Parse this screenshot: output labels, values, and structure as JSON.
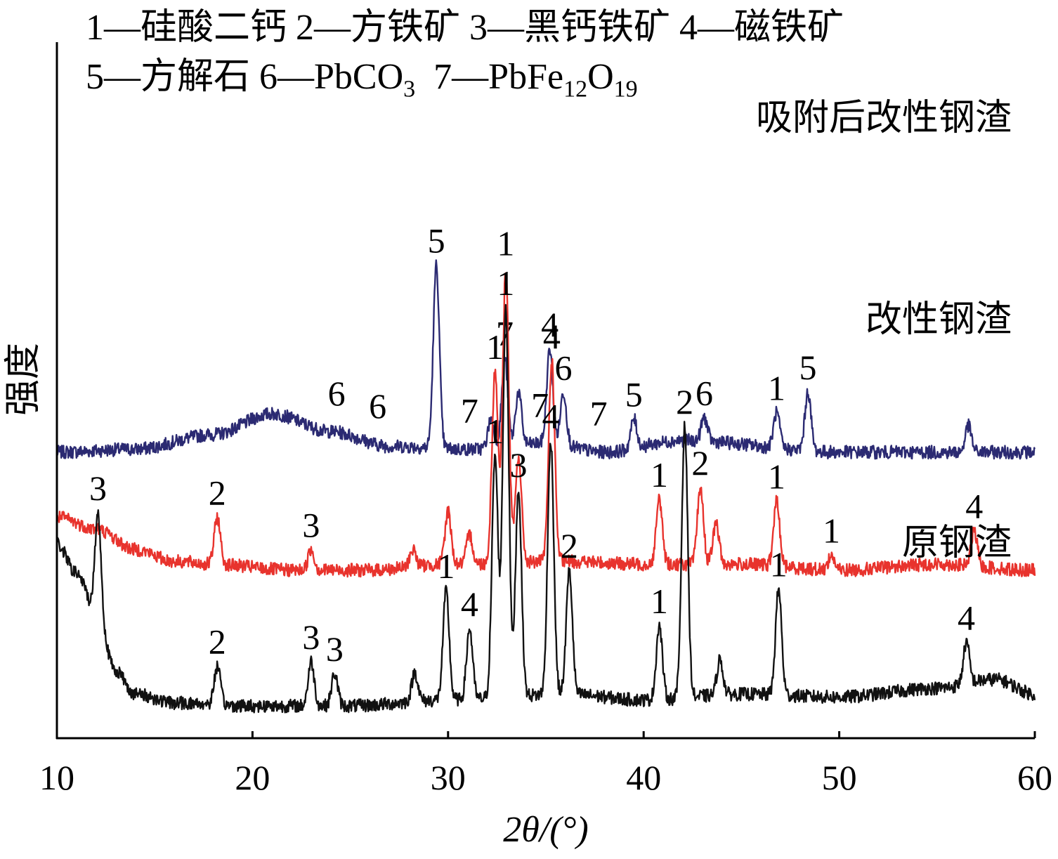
{
  "legend": {
    "line1": "1—硅酸二钙 2—方铁矿 3—黑钙铁矿 4—磁铁矿",
    "line2_prefix": "5—方解石 6—PbCO",
    "line2_sub1": "3",
    "line2_mid": "  7—PbFe",
    "line2_sub2": "12",
    "line2_o": "O",
    "line2_sub3": "19"
  },
  "chart_data": {
    "type": "line",
    "xlabel": "2θ/(°)",
    "ylabel": "强度",
    "xlim": [
      10,
      60
    ],
    "xticks": [
      10,
      20,
      30,
      40,
      50,
      60
    ],
    "yticks": [],
    "grid": false,
    "legend_placement": "top-left",
    "series": [
      {
        "name": "吸附后改性钢渣",
        "color": "#2b2a72",
        "baseline": 0.86,
        "background": [
          [
            10,
            0
          ],
          [
            14,
            0.01
          ],
          [
            18,
            0.06
          ],
          [
            21,
            0.13
          ],
          [
            24,
            0.07
          ],
          [
            27,
            0.02
          ],
          [
            31,
            0.01
          ],
          [
            35,
            0.03
          ],
          [
            38,
            0.0
          ],
          [
            42,
            0.04
          ],
          [
            50,
            0.0
          ],
          [
            55,
            0.0
          ],
          [
            60,
            0.0
          ]
        ],
        "peaks": [
          {
            "x": 29.4,
            "h": 0.62,
            "label": "5"
          },
          {
            "x": 32.2,
            "h": 0.1
          },
          {
            "x": 32.9,
            "h": 0.3,
            "label": "7"
          },
          {
            "x": 33.6,
            "h": 0.18
          },
          {
            "x": 35.2,
            "h": 0.32,
            "label": "4"
          },
          {
            "x": 35.9,
            "h": 0.18,
            "label": "6"
          },
          {
            "x": 39.5,
            "h": 0.1,
            "label": "5"
          },
          {
            "x": 43.1,
            "h": 0.08,
            "label": "6"
          },
          {
            "x": 46.8,
            "h": 0.12,
            "label": "1"
          },
          {
            "x": 48.4,
            "h": 0.2,
            "label": "5"
          },
          {
            "x": 56.6,
            "h": 0.09
          }
        ],
        "annotations": [
          {
            "x": 24.3,
            "text": "6"
          },
          {
            "x": 26.4,
            "text": "6"
          },
          {
            "x": 31.1,
            "text": "7"
          },
          {
            "x": 34.7,
            "text": "7"
          },
          {
            "x": 37.7,
            "text": "7"
          }
        ],
        "title_label": "吸附后改性钢渣"
      },
      {
        "name": "改性钢渣",
        "color": "#e8332d",
        "baseline": 0.46,
        "background": [
          [
            10,
            0.18
          ],
          [
            12,
            0.14
          ],
          [
            14,
            0.07
          ],
          [
            16,
            0.03
          ],
          [
            18,
            0.02
          ],
          [
            22,
            0.0
          ],
          [
            26,
            0.0
          ],
          [
            30,
            0.02
          ],
          [
            36,
            0.03
          ],
          [
            40,
            0.02
          ],
          [
            45,
            0.02
          ],
          [
            50,
            0.0
          ],
          [
            55,
            0.02
          ],
          [
            60,
            0.0
          ]
        ],
        "peaks": [
          {
            "x": 18.2,
            "h": 0.16,
            "label": "2"
          },
          {
            "x": 23.0,
            "h": 0.07,
            "label": "3"
          },
          {
            "x": 28.2,
            "h": 0.06
          },
          {
            "x": 30.0,
            "h": 0.18
          },
          {
            "x": 31.1,
            "h": 0.1
          },
          {
            "x": 32.4,
            "h": 0.65,
            "label": "1"
          },
          {
            "x": 32.95,
            "h": 1.0,
            "label": "1"
          },
          {
            "x": 33.6,
            "h": 0.36
          },
          {
            "x": 35.3,
            "h": 0.68,
            "label": "4"
          },
          {
            "x": 40.8,
            "h": 0.22,
            "label": "1"
          },
          {
            "x": 42.9,
            "h": 0.26,
            "label": "2"
          },
          {
            "x": 43.7,
            "h": 0.14
          },
          {
            "x": 46.8,
            "h": 0.22,
            "label": "1"
          },
          {
            "x": 49.6,
            "h": 0.05,
            "label": "1"
          },
          {
            "x": 56.9,
            "h": 0.12,
            "label": "4"
          }
        ],
        "title_label": "改性钢渣"
      },
      {
        "name": "原钢渣",
        "color": "#111111",
        "baseline": 0.0,
        "background": [
          [
            10,
            0.55
          ],
          [
            11,
            0.45
          ],
          [
            12,
            0.32
          ],
          [
            13,
            0.12
          ],
          [
            14,
            0.04
          ],
          [
            16,
            0.01
          ],
          [
            20,
            0.0
          ],
          [
            25,
            0.0
          ],
          [
            30,
            0.02
          ],
          [
            36,
            0.04
          ],
          [
            40,
            0.02
          ],
          [
            45,
            0.04
          ],
          [
            50,
            0.03
          ],
          [
            55,
            0.06
          ],
          [
            58,
            0.09
          ],
          [
            60,
            0.04
          ]
        ],
        "peaks": [
          {
            "x": 12.1,
            "h": 0.34,
            "label": "3"
          },
          {
            "x": 18.2,
            "h": 0.13,
            "label": "2"
          },
          {
            "x": 23.0,
            "h": 0.15,
            "label": "3"
          },
          {
            "x": 24.2,
            "h": 0.11,
            "label": "3"
          },
          {
            "x": 28.3,
            "h": 0.1
          },
          {
            "x": 29.9,
            "h": 0.37,
            "label": "1"
          },
          {
            "x": 31.1,
            "h": 0.24,
            "label": "4"
          },
          {
            "x": 32.4,
            "h": 0.82,
            "label": "1"
          },
          {
            "x": 32.95,
            "h": 1.32,
            "label": "1"
          },
          {
            "x": 33.6,
            "h": 0.7,
            "label": "3"
          },
          {
            "x": 35.25,
            "h": 0.86,
            "label": "4"
          },
          {
            "x": 36.2,
            "h": 0.42,
            "label": "2"
          },
          {
            "x": 40.8,
            "h": 0.25,
            "label": "1"
          },
          {
            "x": 42.1,
            "h": 0.92,
            "label": "2"
          },
          {
            "x": 43.9,
            "h": 0.12
          },
          {
            "x": 46.9,
            "h": 0.36,
            "label": "1"
          },
          {
            "x": 56.5,
            "h": 0.14,
            "label": "4"
          }
        ],
        "title_label": "原钢渣"
      }
    ]
  }
}
